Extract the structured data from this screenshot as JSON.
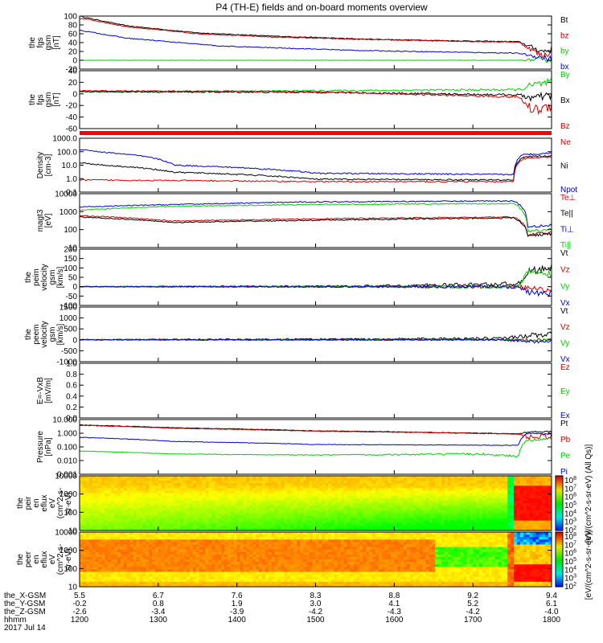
{
  "colors": {
    "black": "#000000",
    "red": "#d00000",
    "green": "#00d000",
    "blue": "#0000d0",
    "bar_red": "#ff0000"
  },
  "chart_data": [
    {
      "type": "line",
      "title": "P4 (TH-E) fields and on-board moments overview",
      "ylabel": [
        "the",
        "fgs",
        "gsm",
        "[nT]"
      ],
      "yticks": [
        "100",
        "80",
        "60",
        "40",
        "20",
        "0",
        "-20"
      ],
      "ylim": [
        -20,
        100
      ],
      "legend": [
        {
          "label": "Bt",
          "color": "#000000"
        },
        {
          "label": "bz",
          "color": "#d00000"
        },
        {
          "label": "by",
          "color": "#00d000"
        },
        {
          "label": "bx",
          "color": "#0000d0"
        }
      ],
      "series": [
        {
          "name": "Bt",
          "color": "#000000",
          "x": [
            0,
            0.02,
            0.1,
            0.25,
            0.4,
            0.6,
            0.8,
            0.93,
            0.98,
            1.0
          ],
          "y": [
            100,
            95,
            78,
            62,
            55,
            48,
            44,
            42,
            20,
            25
          ],
          "noise": [
            1,
            1,
            1,
            1,
            1,
            1,
            1,
            1,
            8,
            8
          ]
        },
        {
          "name": "bz",
          "color": "#d00000",
          "x": [
            0,
            0.02,
            0.1,
            0.25,
            0.4,
            0.6,
            0.8,
            0.93,
            0.98,
            1.0
          ],
          "y": [
            95,
            92,
            76,
            60,
            53,
            47,
            43,
            41,
            10,
            20
          ],
          "noise": [
            1,
            1,
            1,
            1,
            1,
            1,
            1,
            1,
            8,
            8
          ]
        },
        {
          "name": "by",
          "color": "#00d000",
          "x": [
            0,
            0.3,
            0.6,
            0.93,
            1.0
          ],
          "y": [
            0,
            0,
            0,
            0,
            2
          ],
          "noise": [
            0.3,
            0.3,
            0.3,
            0.3,
            8
          ]
        },
        {
          "name": "bx",
          "color": "#0000d0",
          "x": [
            0,
            0.1,
            0.3,
            0.6,
            0.93,
            1.0
          ],
          "y": [
            68,
            50,
            32,
            22,
            16,
            2
          ],
          "noise": [
            1,
            1,
            1,
            1,
            1,
            8
          ]
        }
      ]
    },
    {
      "type": "line",
      "ylabel": [
        "the",
        "fgs",
        "gsm",
        "[nT]"
      ],
      "yticks": [
        "40",
        "20",
        "0",
        "-20",
        "-40",
        "-60"
      ],
      "ylim": [
        -70,
        40
      ],
      "legend": [
        {
          "label": "By",
          "color": "#00d000"
        },
        {
          "label": "Bx",
          "color": "#000000"
        },
        {
          "label": "Bz",
          "color": "#d00000"
        }
      ],
      "series": [
        {
          "name": "By",
          "color": "#00d000",
          "x": [
            0,
            0.5,
            0.93,
            0.96,
            1.0
          ],
          "y": [
            0,
            2,
            4,
            12,
            18
          ],
          "noise": [
            1,
            1.5,
            2,
            8,
            8
          ]
        },
        {
          "name": "Bx",
          "color": "#000000",
          "x": [
            0,
            0.5,
            0.93,
            0.96,
            1.0
          ],
          "y": [
            0,
            -1,
            -6,
            -12,
            -8
          ],
          "noise": [
            1,
            1.5,
            2,
            8,
            8
          ]
        },
        {
          "name": "Bz",
          "color": "#d00000",
          "x": [
            0,
            0.5,
            0.93,
            0.96,
            1.0
          ],
          "y": [
            2,
            0,
            -10,
            -35,
            -28
          ],
          "noise": [
            1,
            1.5,
            2,
            10,
            10
          ]
        }
      ]
    },
    {
      "type": "line",
      "ylabel": [
        "Density",
        "[cm-3]"
      ],
      "yticks": [
        "1000.0",
        "100.0",
        "10.0",
        "1.0",
        "0.1"
      ],
      "yscale": "log",
      "ylim": [
        0.1,
        1000
      ],
      "legend": [
        {
          "label": "Ne",
          "color": "#d00000"
        },
        {
          "label": "Ni",
          "color": "#000000"
        },
        {
          "label": "Npot",
          "color": "#0000d0"
        }
      ],
      "series": [
        {
          "name": "Npot",
          "color": "#0000d0",
          "x": [
            0,
            0.05,
            0.2,
            0.5,
            0.92,
            0.94,
            1.0
          ],
          "y": [
            150,
            90,
            10,
            2.5,
            2,
            60,
            80
          ],
          "noise": [
            0.05,
            0.05,
            0.05,
            0.05,
            0.05,
            0.06,
            0.06
          ]
        },
        {
          "name": "Ni",
          "color": "#000000",
          "x": [
            0,
            0.05,
            0.2,
            0.5,
            0.92,
            0.94,
            1.0
          ],
          "y": [
            15,
            10,
            3,
            0.9,
            0.8,
            40,
            50
          ],
          "noise": [
            0.05,
            0.05,
            0.05,
            0.05,
            0.05,
            0.06,
            0.06
          ]
        },
        {
          "name": "Ne",
          "color": "#d00000",
          "x": [
            0,
            0.5,
            0.92,
            0.94,
            1.0
          ],
          "y": [
            0.8,
            0.6,
            0.6,
            30,
            40
          ],
          "noise": [
            0.05,
            0.05,
            0.05,
            0.06,
            0.06
          ]
        }
      ]
    },
    {
      "type": "line",
      "ylabel": [
        "magt3",
        "[eV]"
      ],
      "yticks": [
        "10000",
        "1000",
        "100",
        "10"
      ],
      "yscale": "log",
      "ylim": [
        10,
        10000
      ],
      "legend": [
        {
          "label": "Te⊥",
          "color": "#d00000"
        },
        {
          "label": "Te||",
          "color": "#000000"
        },
        {
          "label": "Ti⊥",
          "color": "#0000d0"
        },
        {
          "label": "Ti||",
          "color": "#00d000"
        }
      ],
      "series": [
        {
          "name": "Ti⊥",
          "color": "#0000d0",
          "x": [
            0,
            0.2,
            0.5,
            0.92,
            0.95,
            1.0
          ],
          "y": [
            1800,
            2500,
            3500,
            4000,
            150,
            180
          ],
          "noise": [
            0.03,
            0.03,
            0.03,
            0.03,
            0.08,
            0.08
          ]
        },
        {
          "name": "Ti||",
          "color": "#00d000",
          "x": [
            0,
            0.2,
            0.5,
            0.92,
            0.95,
            1.0
          ],
          "y": [
            1200,
            2000,
            2500,
            2800,
            80,
            100
          ],
          "noise": [
            0.03,
            0.03,
            0.03,
            0.03,
            0.08,
            0.08
          ]
        },
        {
          "name": "Te⊥",
          "color": "#d00000",
          "x": [
            0,
            0.2,
            0.5,
            0.92,
            0.95,
            1.0
          ],
          "y": [
            600,
            300,
            400,
            500,
            50,
            70
          ],
          "noise": [
            0.03,
            0.03,
            0.03,
            0.04,
            0.08,
            0.08
          ]
        },
        {
          "name": "Te||",
          "color": "#000000",
          "x": [
            0,
            0.2,
            0.5,
            0.92,
            0.95,
            1.0
          ],
          "y": [
            500,
            250,
            330,
            450,
            45,
            60
          ],
          "noise": [
            0.03,
            0.03,
            0.03,
            0.04,
            0.08,
            0.08
          ]
        }
      ]
    },
    {
      "type": "line",
      "ylabel": [
        "the",
        "peim",
        "velocity",
        "gsm",
        "[km/s]"
      ],
      "yticks": [
        "200",
        "150",
        "100",
        "50",
        "0",
        "-50",
        "-100"
      ],
      "ylim": [
        -100,
        200
      ],
      "legend": [
        {
          "label": "Vt",
          "color": "#000000"
        },
        {
          "label": "Vz",
          "color": "#d00000"
        },
        {
          "label": "Vy",
          "color": "#00d000"
        },
        {
          "label": "Vx",
          "color": "#0000d0"
        }
      ],
      "series": [
        {
          "name": "Vt",
          "color": "#000000",
          "x": [
            0,
            0.6,
            0.93,
            0.95,
            1.0
          ],
          "y": [
            0,
            2,
            15,
            80,
            100
          ],
          "noise": [
            2,
            6,
            12,
            20,
            20
          ]
        },
        {
          "name": "Vz",
          "color": "#d00000",
          "x": [
            0,
            0.6,
            0.93,
            0.95,
            1.0
          ],
          "y": [
            0,
            0,
            0,
            -10,
            -20
          ],
          "noise": [
            2,
            5,
            10,
            15,
            15
          ]
        },
        {
          "name": "Vy",
          "color": "#00d000",
          "x": [
            0,
            0.6,
            0.93,
            0.95,
            1.0
          ],
          "y": [
            0,
            0,
            0,
            80,
            70
          ],
          "noise": [
            2,
            5,
            10,
            15,
            15
          ]
        },
        {
          "name": "Vx",
          "color": "#0000d0",
          "x": [
            0,
            0.6,
            0.93,
            0.95,
            1.0
          ],
          "y": [
            0,
            0,
            0,
            -30,
            -40
          ],
          "noise": [
            2,
            5,
            10,
            15,
            15
          ]
        }
      ]
    },
    {
      "type": "line",
      "ylabel": [
        "the",
        "peem",
        "velocity",
        "gsm",
        "[km/s]"
      ],
      "yticks": [
        "1500",
        "1000",
        "500",
        "0",
        "-500",
        "-1000"
      ],
      "ylim": [
        -1000,
        1500
      ],
      "legend": [
        {
          "label": "Vt",
          "color": "#000000"
        },
        {
          "label": "Vz",
          "color": "#d00000"
        },
        {
          "label": "Vy",
          "color": "#00d000"
        },
        {
          "label": "Vx",
          "color": "#0000d0"
        }
      ],
      "series": [
        {
          "name": "Vt",
          "color": "#000000",
          "x": [
            0,
            0.6,
            0.9,
            0.95,
            1.0
          ],
          "y": [
            10,
            30,
            80,
            200,
            250
          ],
          "noise": [
            20,
            40,
            60,
            120,
            120
          ]
        },
        {
          "name": "Vz",
          "color": "#d00000",
          "x": [
            0,
            0.6,
            0.9,
            0.95,
            1.0
          ],
          "y": [
            0,
            0,
            0,
            0,
            0
          ],
          "noise": [
            15,
            30,
            40,
            80,
            80
          ]
        },
        {
          "name": "Vy",
          "color": "#00d000",
          "x": [
            0,
            0.6,
            0.9,
            0.95,
            1.0
          ],
          "y": [
            0,
            0,
            0,
            -50,
            0
          ],
          "noise": [
            15,
            30,
            40,
            80,
            80
          ]
        },
        {
          "name": "Vx",
          "color": "#0000d0",
          "x": [
            0,
            0.6,
            0.9,
            0.95,
            1.0
          ],
          "y": [
            0,
            0,
            0,
            -80,
            -50
          ],
          "noise": [
            15,
            30,
            40,
            80,
            80
          ]
        }
      ]
    },
    {
      "type": "line",
      "ylabel": [
        "E=-VxB",
        "[mV/m]"
      ],
      "yticks": [
        "1.0",
        "0.8",
        "0.6",
        "0.4",
        "0.2",
        "0.0"
      ],
      "ylim": [
        0,
        1
      ],
      "legend": [
        {
          "label": "Ez",
          "color": "#d00000"
        },
        {
          "label": "Ey",
          "color": "#00d000"
        },
        {
          "label": "Ex",
          "color": "#0000d0"
        }
      ],
      "series": []
    },
    {
      "type": "line",
      "ylabel": [
        "Pressure",
        "[nPa]"
      ],
      "yticks": [
        "10.000",
        "1.000",
        "0.100",
        "0.010",
        "0.001"
      ],
      "yscale": "log",
      "ylim": [
        0.001,
        10
      ],
      "legend": [
        {
          "label": "Pt",
          "color": "#000000"
        },
        {
          "label": "Pb",
          "color": "#d00000"
        },
        {
          "label": "Pe",
          "color": "#00d000"
        },
        {
          "label": "Pi",
          "color": "#0000d0"
        }
      ],
      "series": [
        {
          "name": "Pt",
          "color": "#000000",
          "x": [
            0,
            0.2,
            0.5,
            0.93,
            0.95,
            1.0
          ],
          "y": [
            4,
            2.5,
            1.5,
            0.9,
            1.2,
            1.3
          ],
          "noise": [
            0.02,
            0.02,
            0.02,
            0.02,
            0.05,
            0.05
          ]
        },
        {
          "name": "Pb",
          "color": "#d00000",
          "x": [
            0,
            0.2,
            0.5,
            0.93,
            0.95,
            1.0
          ],
          "y": [
            3.8,
            2.3,
            1.4,
            0.85,
            0.5,
            0.6
          ],
          "noise": [
            0.02,
            0.02,
            0.02,
            0.02,
            0.2,
            0.2
          ]
        },
        {
          "name": "Pi",
          "color": "#0000d0",
          "x": [
            0,
            0.2,
            0.5,
            0.93,
            0.95,
            1.0
          ],
          "y": [
            0.5,
            0.25,
            0.15,
            0.13,
            1.0,
            0.8
          ],
          "noise": [
            0.02,
            0.02,
            0.02,
            0.02,
            0.05,
            0.05
          ]
        },
        {
          "name": "Pe",
          "color": "#00d000",
          "x": [
            0,
            0.2,
            0.5,
            0.85,
            0.93,
            0.95,
            1.0
          ],
          "y": [
            0.05,
            0.03,
            0.025,
            0.03,
            0.02,
            0.3,
            0.4
          ],
          "noise": [
            0.02,
            0.02,
            0.03,
            0.08,
            0.1,
            0.08,
            0.08
          ]
        }
      ]
    },
    {
      "type": "heatmap",
      "ylabel": [
        "the",
        "peir",
        "en",
        "eflux",
        "eV",
        "(cm^2-s-",
        "sr-eV)"
      ],
      "yticks": [
        "10000",
        "1000",
        "100",
        "10"
      ],
      "yscale": "log",
      "colorbar": {
        "ticks": [
          "10^8",
          "10^7",
          "10^6",
          "10^5",
          "10^4",
          "10^3",
          "10^2"
        ],
        "label": "[eV/(cm^2-s-sr-eV)]"
      }
    },
    {
      "type": "heatmap",
      "ylabel": [
        "the",
        "peer",
        "en",
        "eflux",
        "eV",
        "(cm^2-s-",
        "sr-eV)"
      ],
      "yticks": [
        "10000",
        "1000",
        "100",
        "10"
      ],
      "yscale": "log",
      "colorbar": {
        "ticks": [
          "10^8",
          "10^7",
          "10^6",
          "10^5",
          "10^4",
          "10^3",
          "10^2"
        ],
        "label": "[eV/(cm^2-s-sr-eV)]"
      }
    }
  ],
  "colorbar_overlay_text": "[eV/(cm^2-s-sr-eV) (All Qs)]",
  "orbit": {
    "row_labels": [
      "the_X-GSM",
      "the_Y-GSM",
      "the_Z-GSM",
      "hhmm",
      "2017 Jul 14"
    ],
    "columns": [
      [
        "5.5",
        "-0.2",
        "-2.6",
        "1200"
      ],
      [
        "6.7",
        "0.8",
        "-3.4",
        "1300"
      ],
      [
        "7.6",
        "1.9",
        "-3.9",
        "1400"
      ],
      [
        "8.3",
        "3.0",
        "-4.2",
        "1500"
      ],
      [
        "8.8",
        "4.1",
        "-4.3",
        "1600"
      ],
      [
        "9.2",
        "5.2",
        "-4.2",
        "1700"
      ],
      [
        "9.4",
        "6.1",
        "-4.0",
        "1800"
      ]
    ]
  }
}
